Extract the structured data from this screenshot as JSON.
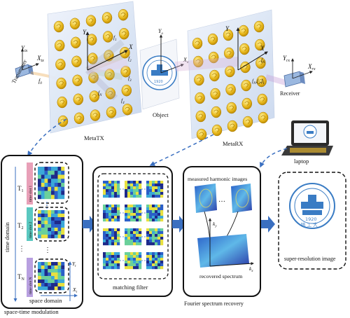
{
  "labels": {
    "transmitter": "Transmitter",
    "metatx": "MetaTX",
    "object": "Object",
    "metarx": "MetaRX",
    "receiver": "Receiver",
    "laptop": "laptop",
    "time_domain": "time domain",
    "space_domain": "space domain",
    "space_time_modulation": "space-time modulation",
    "matching_filter": "matching filter",
    "measured_harmonic_images": "measured harmonic images",
    "recovered_spectrum": "recovered spectrum",
    "fourier_spectrum_recovery": "Fourier spectrum recovery",
    "super_resolution_image": "super-resolution image"
  },
  "axes": {
    "y_tx": "Y",
    "y_tx_sub": "tx",
    "x_tx": "X",
    "x_tx_sub": "tx",
    "y": "Y",
    "x": "X",
    "y_o": "Y",
    "y_o_sub": "o",
    "x_o": "X",
    "x_o_sub": "o",
    "y_rx": "Y",
    "y_rx_sub": "rx",
    "x_rx": "X",
    "x_rx_sub": "rx",
    "kx": "k",
    "kx_sub": "x",
    "ky": "k",
    "ky_sub": "y",
    "yt": "Y",
    "yt_sub": "t",
    "xt": "X",
    "xt_sub": "t"
  },
  "freqs": {
    "f0": "f",
    "f0_sub": "0",
    "f1": "f",
    "f1_sub": "1",
    "f2": "f",
    "f2_sub": "2",
    "f3": "f",
    "f3_sub": "3",
    "f4": "f",
    "f4_sub": "4",
    "fN": "f",
    "fN_sub": "N",
    "rx_fN": "f",
    "rx_fN_sub": "N",
    "rx_f2": "f",
    "rx_f2_sub": "2",
    "rx_f1": "f",
    "rx_f1_sub": "1",
    "rx_fn2": "f",
    "rx_fn2_sub": "N"
  },
  "time_slots": [
    {
      "T": "T",
      "T_sub": "1",
      "slot": "time slot 1"
    },
    {
      "T": "T",
      "T_sub": "2",
      "slot": "time slot 2"
    },
    {
      "T": "T",
      "T_sub": "N",
      "slot": "time slot N"
    }
  ],
  "dots": "…",
  "vdots": "⋮",
  "emblem": {
    "year": "1920",
    "name": "哈 工 大"
  },
  "colors": {
    "accent_blue": "#3a7cc4",
    "slot_pink": "#e8a0b8",
    "slot_teal": "#5ac8c0",
    "slot_purple": "#b8a0e0",
    "meta_panel": "#dfe8f5",
    "arrow_blue": "#3a6fc0"
  }
}
